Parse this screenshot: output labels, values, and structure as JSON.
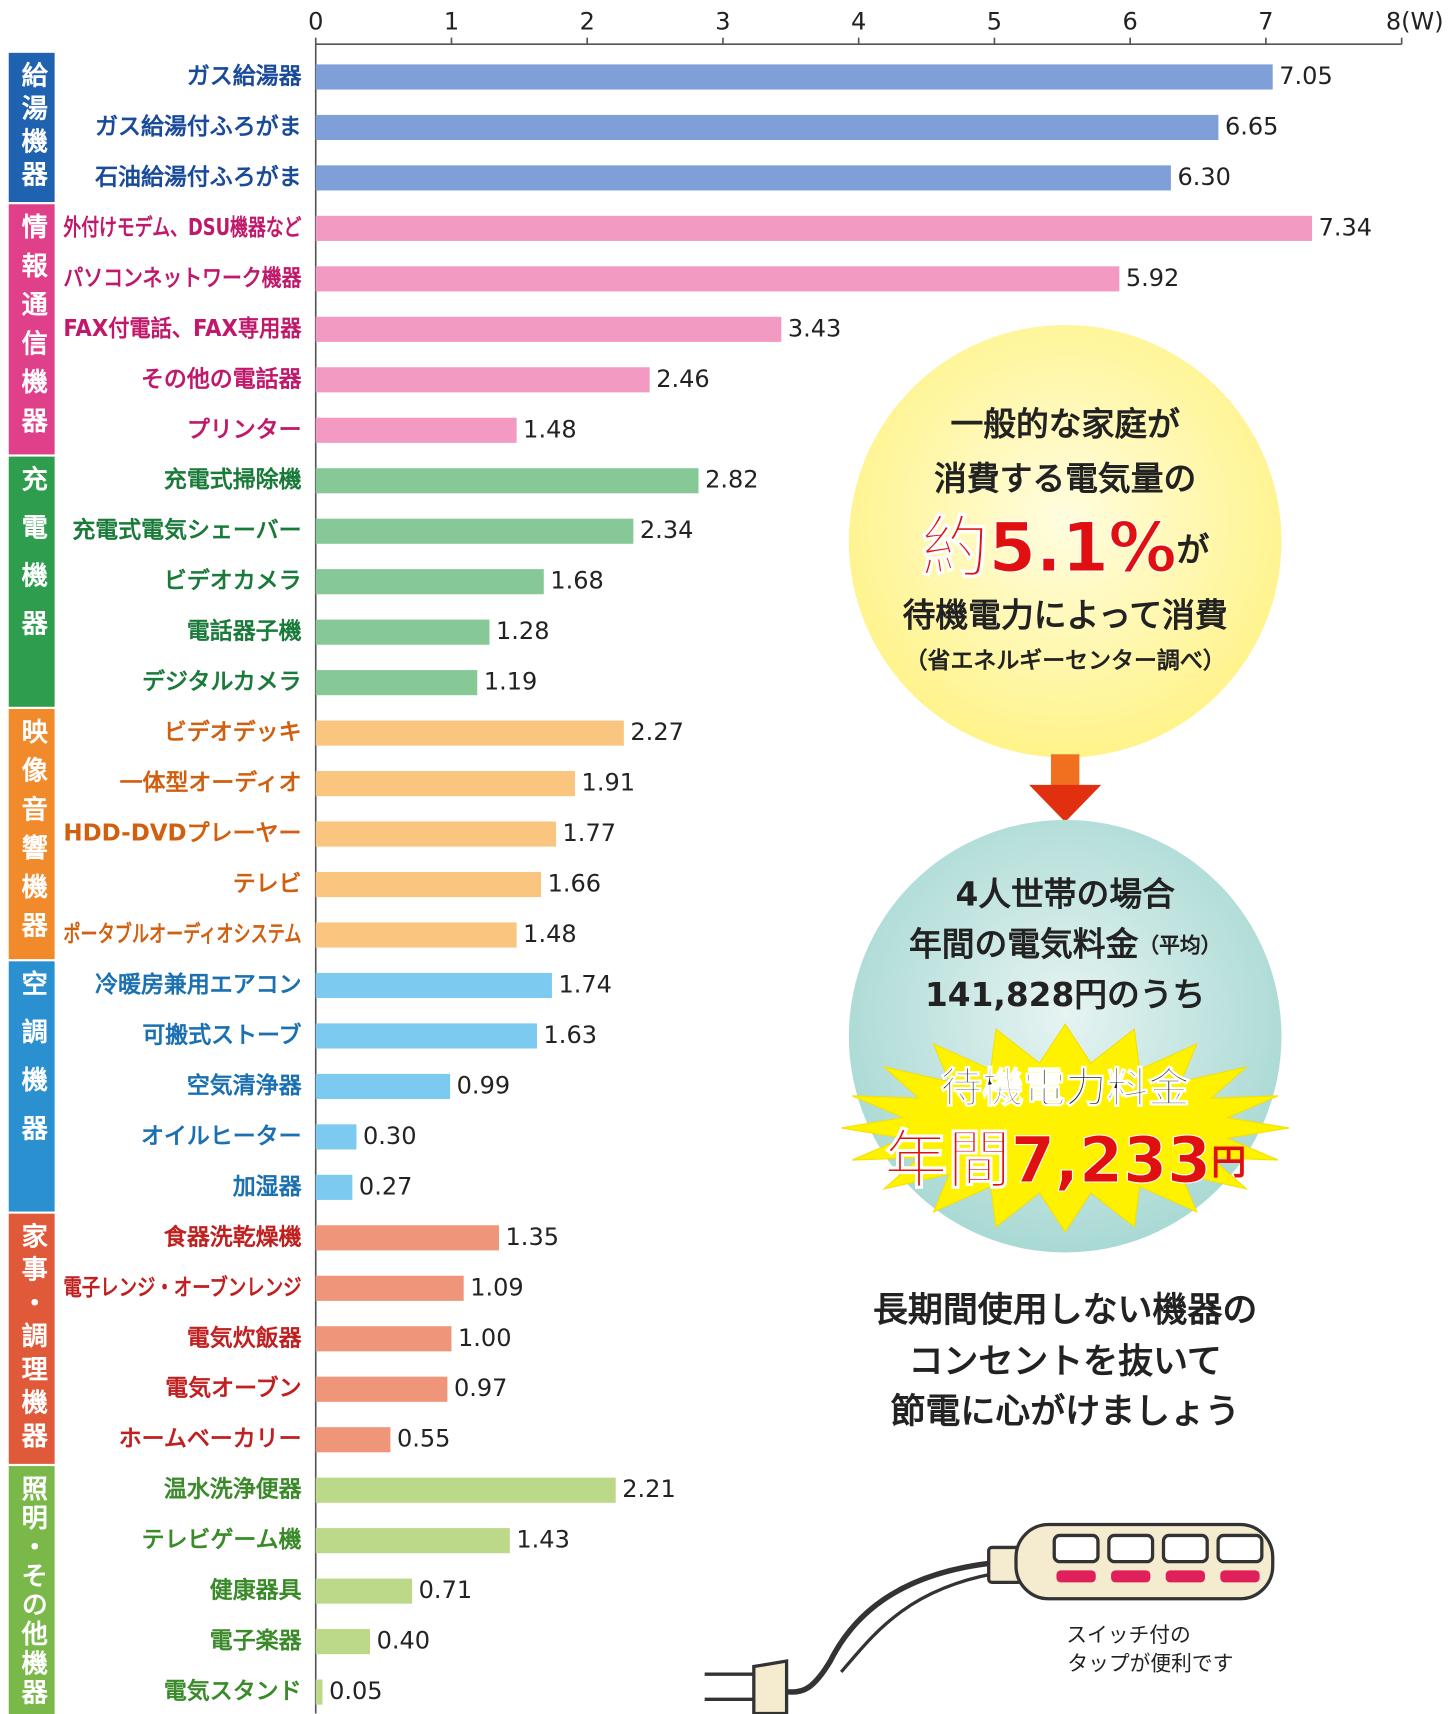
{
  "chart_data": {
    "type": "bar",
    "orientation": "horizontal",
    "xlim": [
      0,
      8
    ],
    "xticks": [
      0,
      1,
      2,
      3,
      4,
      5,
      6,
      7,
      {
        "value": 8,
        "label": "8(W)"
      }
    ],
    "series": [
      {
        "name": "給湯機器",
        "color": "#1f63b0",
        "bar_color": "#7f9fd8",
        "label_color": "#1a4a9a",
        "categories": [
          "ガス給湯器",
          "ガス給湯付ふろがま",
          "石油給湯付ふろがま"
        ],
        "values": [
          7.05,
          6.65,
          6.3
        ],
        "value_labels": [
          "7.05",
          "6.65",
          "6.30"
        ]
      },
      {
        "name": "情報通信機器",
        "color": "#e0408a",
        "bar_color": "#f29ac2",
        "label_color": "#c0186a",
        "categories": [
          "外付けモデム、DSU機器など",
          "パソコンネットワーク機器",
          "FAX付電話、FAX専用器",
          "その他の電話器",
          "プリンター"
        ],
        "values": [
          7.34,
          5.92,
          3.43,
          2.46,
          1.48
        ],
        "value_labels": [
          "7.34",
          "5.92",
          "3.43",
          "2.46",
          "1.48"
        ]
      },
      {
        "name": "充電機器",
        "color": "#2e9e4e",
        "bar_color": "#86c896",
        "label_color": "#1a7a3a",
        "categories": [
          "充電式掃除機",
          "充電式電気シェーバー",
          "ビデオカメラ",
          "電話器子機",
          "デジタルカメラ"
        ],
        "values": [
          2.82,
          2.34,
          1.68,
          1.28,
          1.19
        ],
        "value_labels": [
          "2.82",
          "2.34",
          "1.68",
          "1.28",
          "1.19"
        ]
      },
      {
        "name": "映像音響機器",
        "color": "#f08a2a",
        "bar_color": "#f9c57f",
        "label_color": "#d06010",
        "categories": [
          "ビデオデッキ",
          "一体型オーディオ",
          "HDD-DVDプレーヤー",
          "テレビ",
          "ポータブルオーディオシステム"
        ],
        "values": [
          2.27,
          1.91,
          1.77,
          1.66,
          1.48
        ],
        "value_labels": [
          "2.27",
          "1.91",
          "1.77",
          "1.66",
          "1.48"
        ]
      },
      {
        "name": "空調機器",
        "color": "#2a90d0",
        "bar_color": "#7ccaf0",
        "label_color": "#1a70b0",
        "categories": [
          "冷暖房兼用エアコン",
          "可搬式ストーブ",
          "空気清浄器",
          "オイルヒーター",
          "加湿器"
        ],
        "values": [
          1.74,
          1.63,
          0.99,
          0.3,
          0.27
        ],
        "value_labels": [
          "1.74",
          "1.63",
          "0.99",
          "0.30",
          "0.27"
        ]
      },
      {
        "name": "家事・調理機器",
        "color": "#e05a3a",
        "bar_color": "#ef967a",
        "label_color": "#c02020",
        "categories": [
          "食器洗乾燥機",
          "電子レンジ・オーブンレンジ",
          "電気炊飯器",
          "電気オーブン",
          "ホームベーカリー"
        ],
        "values": [
          1.35,
          1.09,
          1.0,
          0.97,
          0.55
        ],
        "value_labels": [
          "1.35",
          "1.09",
          "1.00",
          "0.97",
          "0.55"
        ]
      },
      {
        "name": "照明・その他機器",
        "color": "#7ab84a",
        "bar_color": "#bcd98a",
        "label_color": "#3a8a2a",
        "categories": [
          "温水洗浄便器",
          "テレビゲーム機",
          "健康器具",
          "電子楽器",
          "電気スタンド"
        ],
        "values": [
          2.21,
          1.43,
          0.71,
          0.4,
          0.05
        ],
        "value_labels": [
          "2.21",
          "1.43",
          "0.71",
          "0.40",
          "0.05"
        ]
      }
    ],
    "annotations": {
      "callout1": [
        "一般的な家庭が",
        "消費する電気量の",
        "約5.1%",
        "が",
        "待機電力によって消費",
        "（省エネルギーセンター調べ）"
      ],
      "callout2": [
        "4人世帯の場合",
        "年間の電気料金",
        "（平均）",
        "141,828円のうち",
        "待機電力料金",
        "年間7,233",
        "円"
      ],
      "message": [
        "長期間使用しない機器の",
        "コンセントを抜いて",
        "節電に心がけましょう"
      ],
      "caption": [
        "スイッチ付の",
        "タップが便利です"
      ]
    }
  }
}
